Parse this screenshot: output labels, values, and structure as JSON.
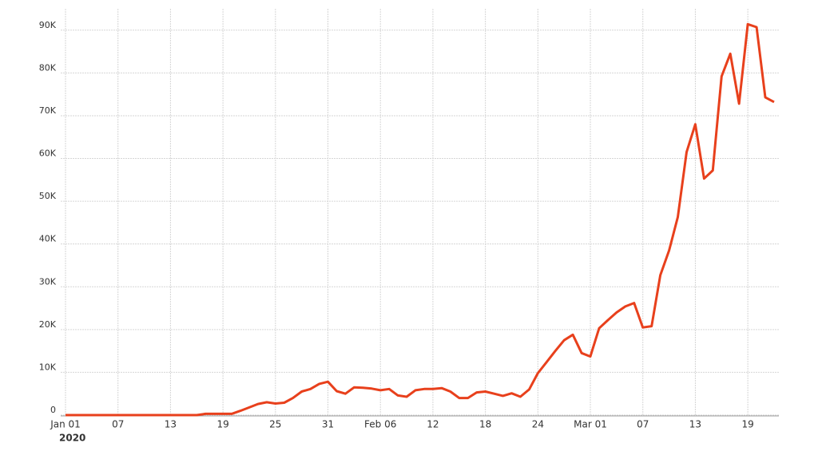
{
  "chart_data": {
    "type": "line",
    "x": [
      "2020-01-01",
      "2020-01-02",
      "2020-01-03",
      "2020-01-04",
      "2020-01-05",
      "2020-01-06",
      "2020-01-07",
      "2020-01-08",
      "2020-01-09",
      "2020-01-10",
      "2020-01-11",
      "2020-01-12",
      "2020-01-13",
      "2020-01-14",
      "2020-01-15",
      "2020-01-16",
      "2020-01-17",
      "2020-01-18",
      "2020-01-19",
      "2020-01-20",
      "2020-01-21",
      "2020-01-22",
      "2020-01-23",
      "2020-01-24",
      "2020-01-25",
      "2020-01-26",
      "2020-01-27",
      "2020-01-28",
      "2020-01-29",
      "2020-01-30",
      "2020-01-31",
      "2020-02-01",
      "2020-02-02",
      "2020-02-03",
      "2020-02-04",
      "2020-02-05",
      "2020-02-06",
      "2020-02-07",
      "2020-02-08",
      "2020-02-09",
      "2020-02-10",
      "2020-02-11",
      "2020-02-12",
      "2020-02-13",
      "2020-02-14",
      "2020-02-15",
      "2020-02-16",
      "2020-02-17",
      "2020-02-18",
      "2020-02-19",
      "2020-02-20",
      "2020-02-21",
      "2020-02-22",
      "2020-02-23",
      "2020-02-24",
      "2020-02-25",
      "2020-02-26",
      "2020-02-27",
      "2020-02-28",
      "2020-02-29",
      "2020-03-01",
      "2020-03-02",
      "2020-03-03",
      "2020-03-04",
      "2020-03-05",
      "2020-03-06",
      "2020-03-07",
      "2020-03-08",
      "2020-03-09",
      "2020-03-10",
      "2020-03-11",
      "2020-03-12",
      "2020-03-13",
      "2020-03-14",
      "2020-03-15",
      "2020-03-16",
      "2020-03-17",
      "2020-03-18",
      "2020-03-19",
      "2020-03-20",
      "2020-03-21",
      "2020-03-22"
    ],
    "values": [
      0,
      0,
      0,
      0,
      0,
      0,
      0,
      0,
      0,
      0,
      0,
      0,
      0,
      0,
      0,
      0,
      300,
      300,
      300,
      300,
      1000,
      1800,
      2600,
      3000,
      2700,
      2900,
      4000,
      5500,
      6100,
      7300,
      7800,
      5600,
      5000,
      6500,
      6400,
      6200,
      5800,
      6100,
      4600,
      4300,
      5800,
      6100,
      6100,
      6300,
      5500,
      4000,
      4000,
      5300,
      5500,
      5000,
      4500,
      5100,
      4300,
      6000,
      9800,
      12400,
      15000,
      17500,
      18800,
      14500,
      13700,
      20300,
      22200,
      24000,
      25400,
      26200,
      20500,
      20800,
      32700,
      38500,
      46300,
      61500,
      68000,
      55300,
      57200,
      79200,
      84500,
      72800,
      91400,
      90700,
      74300,
      73200
    ],
    "color": "#e8401c",
    "xlim": [
      "2020-01-01",
      "2020-03-22"
    ],
    "xticks": [
      {
        "value": "2020-01-01",
        "label": "Jan 01"
      },
      {
        "value": "2020-01-07",
        "label": "07"
      },
      {
        "value": "2020-01-13",
        "label": "13"
      },
      {
        "value": "2020-01-19",
        "label": "19"
      },
      {
        "value": "2020-01-25",
        "label": "25"
      },
      {
        "value": "2020-01-31",
        "label": "31"
      },
      {
        "value": "2020-02-06",
        "label": "Feb 06"
      },
      {
        "value": "2020-02-12",
        "label": "12"
      },
      {
        "value": "2020-02-18",
        "label": "18"
      },
      {
        "value": "2020-02-24",
        "label": "24"
      },
      {
        "value": "2020-03-01",
        "label": "Mar 01"
      },
      {
        "value": "2020-03-07",
        "label": "07"
      },
      {
        "value": "2020-03-13",
        "label": "13"
      },
      {
        "value": "2020-03-19",
        "label": "19"
      }
    ],
    "x_year_label": "2020",
    "ylim": [
      0,
      95000
    ],
    "yticks": [
      0,
      {
        "value": 10000,
        "label": "10K"
      },
      {
        "value": 20000,
        "label": "20K"
      },
      {
        "value": 30000,
        "label": "30K"
      },
      {
        "value": 40000,
        "label": "40K"
      },
      {
        "value": 50000,
        "label": "50K"
      },
      {
        "value": 60000,
        "label": "60K"
      },
      {
        "value": 70000,
        "label": "70K"
      },
      {
        "value": 80000,
        "label": "80K"
      },
      {
        "value": 90000,
        "label": "90K"
      }
    ],
    "grid": true
  }
}
